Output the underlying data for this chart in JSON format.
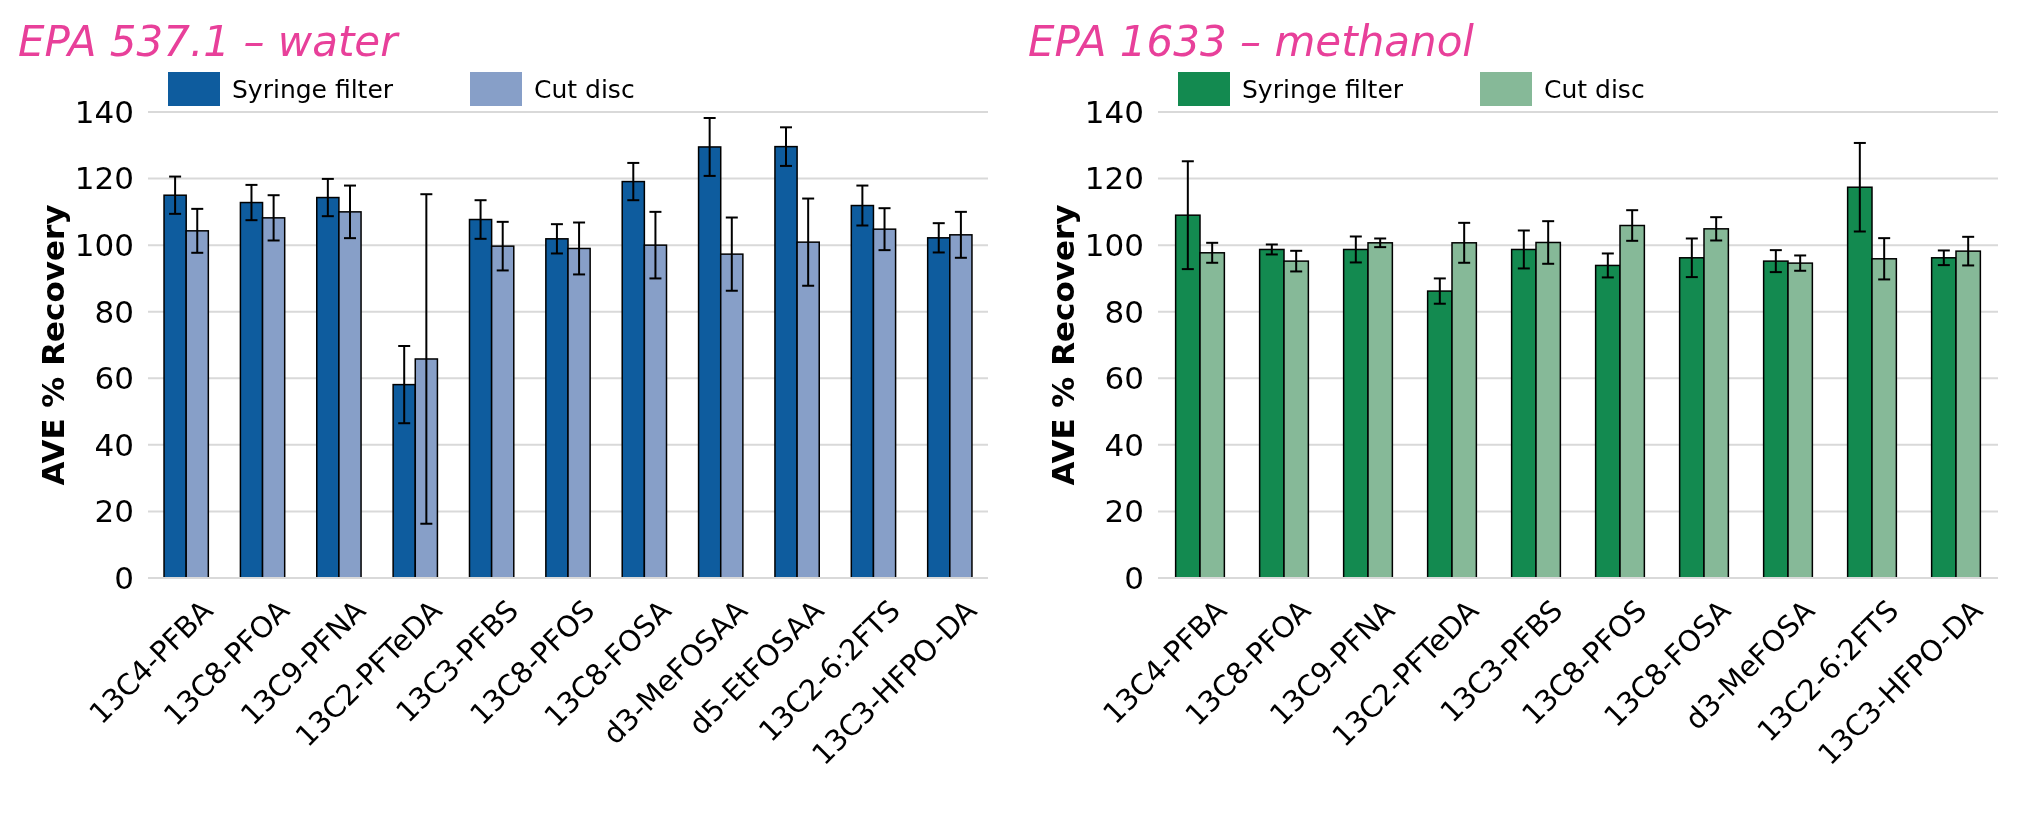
{
  "chart_data": [
    {
      "type": "bar",
      "title": "EPA 537.1 – water",
      "ylabel": "AVE % Recovery",
      "categories": [
        "13C4-PFBA",
        "13C8-PFOA",
        "13C9-PFNA",
        "13C2-PFTeDA",
        "13C3-PFBS",
        "13C8-PFOS",
        "13C8-FOSA",
        "d3-MeFOSAA",
        "d5-EtFOSAA",
        "13C2-6:2FTS",
        "13C3-HFPO-DA"
      ],
      "series": [
        {
          "name": "Syringe filter",
          "color": "#0e5c9e",
          "values": [
            115,
            112.8,
            114.3,
            58.1,
            107.7,
            101.9,
            119.1,
            129.5,
            129.6,
            111.9,
            102.2
          ],
          "errors": [
            5.6,
            5.3,
            5.6,
            11.6,
            5.8,
            4.4,
            5.6,
            8.7,
            5.8,
            6,
            4.4
          ]
        },
        {
          "name": "Cut disc",
          "color": "#879fc8",
          "values": [
            104.3,
            108.2,
            110,
            65.8,
            99.7,
            99,
            100,
            97.3,
            100.9,
            104.8,
            103.1
          ],
          "errors": [
            6.6,
            6.8,
            7.9,
            49.5,
            7.3,
            7.8,
            10,
            11,
            13.1,
            6.3,
            6.9
          ]
        }
      ],
      "ylim": [
        0,
        140
      ],
      "yticks": [
        0,
        20,
        40,
        60,
        80,
        100,
        120,
        140
      ],
      "grid": "y",
      "legend": "top left"
    },
    {
      "type": "bar",
      "title": "EPA 1633 – methanol",
      "ylabel": "AVE % Recovery",
      "categories": [
        "13C4-PFBA",
        "13C8-PFOA",
        "13C9-PFNA",
        "13C2-PFTeDA",
        "13C3-PFBS",
        "13C8-PFOS",
        "13C8-FOSA",
        "d3-MeFOSA",
        "13C2-6:2FTS",
        "13C3-HFPO-DA"
      ],
      "series": [
        {
          "name": "Syringe filter",
          "color": "#138a50",
          "values": [
            109,
            98.7,
            98.7,
            86.2,
            98.7,
            93.9,
            96.2,
            95.2,
            117.4,
            96.2
          ],
          "errors": [
            16.2,
            1.5,
            3.9,
            3.8,
            5.7,
            3.6,
            5.8,
            3.3,
            13.3,
            2.2
          ]
        },
        {
          "name": "Cut disc",
          "color": "#86b998",
          "values": [
            97.7,
            95.2,
            100.7,
            100.7,
            100.8,
            105.9,
            104.9,
            94.6,
            95.9,
            98.2
          ],
          "errors": [
            3,
            3.1,
            1.3,
            6,
            6.4,
            4.6,
            3.5,
            2.3,
            6.2,
            4.3
          ]
        }
      ],
      "ylim": [
        0,
        140
      ],
      "yticks": [
        0,
        20,
        40,
        60,
        80,
        100,
        120,
        140
      ],
      "grid": "y",
      "legend": "top left"
    }
  ]
}
